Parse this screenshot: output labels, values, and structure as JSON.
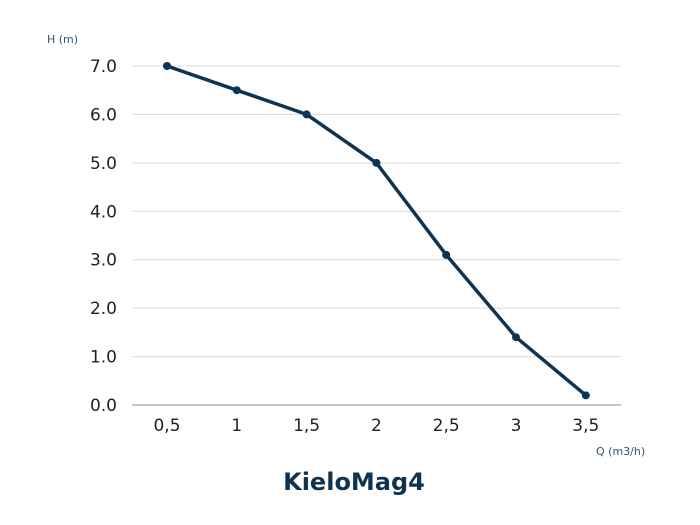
{
  "chart_data": {
    "type": "line",
    "title": "KieloMag4",
    "xlabel": "Q (m3/h)",
    "ylabel": "H (m)",
    "categories": [
      "0,5",
      "1",
      "1,5",
      "2",
      "2,5",
      "3",
      "3,5"
    ],
    "x": [
      0.5,
      1,
      1.5,
      2,
      2.5,
      3,
      3.5
    ],
    "series": [
      {
        "name": "KieloMag4",
        "values": [
          7.0,
          6.5,
          6.0,
          5.0,
          3.1,
          1.4,
          0.2
        ]
      }
    ],
    "yticks": [
      "0.0",
      "1.0",
      "2.0",
      "3.0",
      "4.0",
      "5.0",
      "6.0",
      "7.0"
    ],
    "ylim": [
      0,
      7
    ],
    "grid": true,
    "legend": "none",
    "colors": {
      "line": "#0f3452",
      "grid": "#d9d9d9",
      "axis": "#a6a6a6",
      "title": "#0f3452",
      "axis_label": "#34546f"
    }
  }
}
